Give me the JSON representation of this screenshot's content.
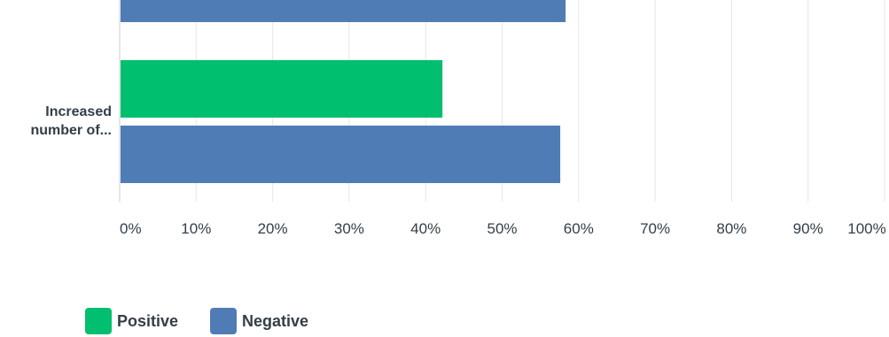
{
  "chart_data": {
    "type": "bar",
    "orientation": "horizontal",
    "categories": [
      "",
      "Increased number of..."
    ],
    "series": [
      {
        "name": "Positive",
        "color": "#00bf6f",
        "values": [
          null,
          42.2
        ]
      },
      {
        "name": "Negative",
        "color": "#507cb6",
        "values": [
          58.3,
          57.6
        ]
      }
    ],
    "xlim": [
      0,
      100
    ],
    "xticks": [
      "0%",
      "10%",
      "20%",
      "30%",
      "40%",
      "50%",
      "60%",
      "70%",
      "80%",
      "90%",
      "100%"
    ],
    "grid": true,
    "legend_position": "bottom-left"
  },
  "legend": [
    {
      "label": "Positive",
      "color": "#00bf6f"
    },
    {
      "label": "Negative",
      "color": "#507cb6"
    }
  ]
}
